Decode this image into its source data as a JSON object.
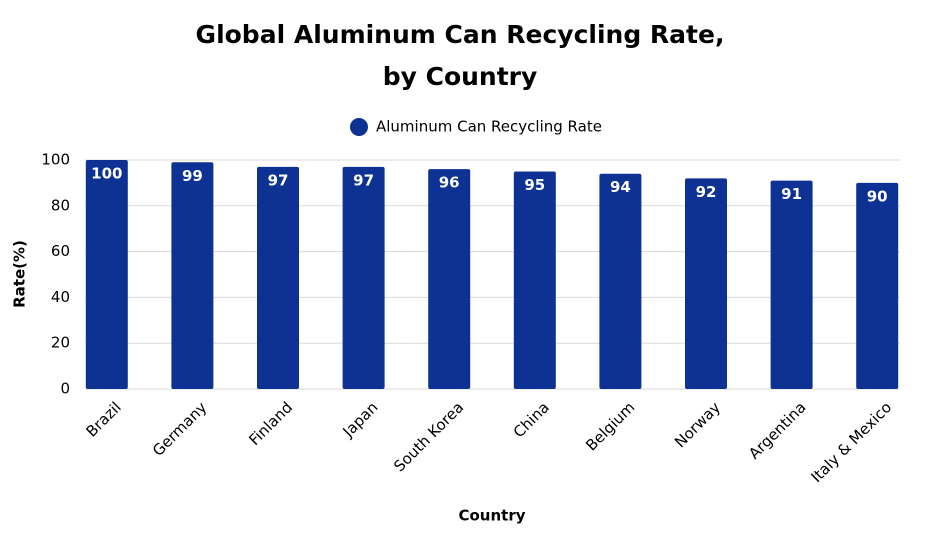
{
  "chart_data": {
    "type": "bar",
    "title": "Global Aluminum Can Recycling Rate, by Country",
    "x_label": "Country",
    "y_label": "Rate(%)",
    "categories": [
      "Brazil",
      "Germany",
      "Finland",
      "Japan",
      "South Korea",
      "China",
      "Belgium",
      "Norway",
      "Argentina",
      "Italy & Mexico"
    ],
    "series": [
      {
        "name": "Aluminum Can Recycling Rate",
        "color": "#0d3293",
        "values": [
          100,
          99,
          97,
          97,
          96,
          95,
          94,
          92,
          91,
          90
        ]
      }
    ],
    "ylim": [
      0,
      100
    ],
    "yticks": [
      0,
      20,
      40,
      60,
      80,
      100
    ],
    "grid": true
  }
}
